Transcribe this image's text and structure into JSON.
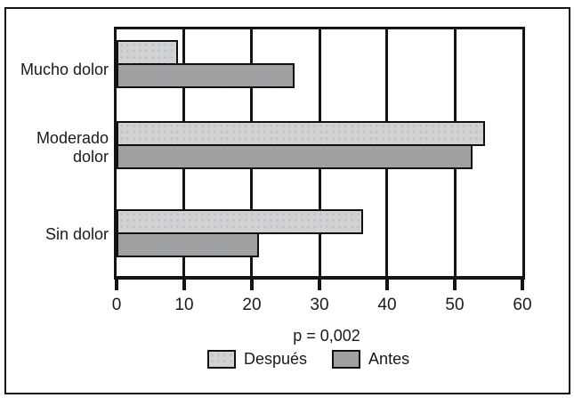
{
  "chart_data": {
    "type": "bar",
    "orientation": "horizontal",
    "title": "",
    "xlabel": "",
    "ylabel": "",
    "categories": [
      "Mucho dolor",
      "Moderado dolor",
      "Sin dolor"
    ],
    "series": [
      {
        "name": "Después",
        "values": [
          9.1,
          54.5,
          36.4
        ],
        "color": "#d2d2d2"
      },
      {
        "name": "Antes",
        "values": [
          26.3,
          52.6,
          21.1
        ],
        "color": "#a0a0a0"
      }
    ],
    "xlim": [
      0,
      60
    ],
    "xticks": [
      0,
      10,
      20,
      30,
      40,
      50,
      60
    ],
    "annotation": "p = 0,002",
    "legend_position": "bottom",
    "grid": "vertical",
    "axis_color": "#141414",
    "bar_border_color": "#111111"
  }
}
